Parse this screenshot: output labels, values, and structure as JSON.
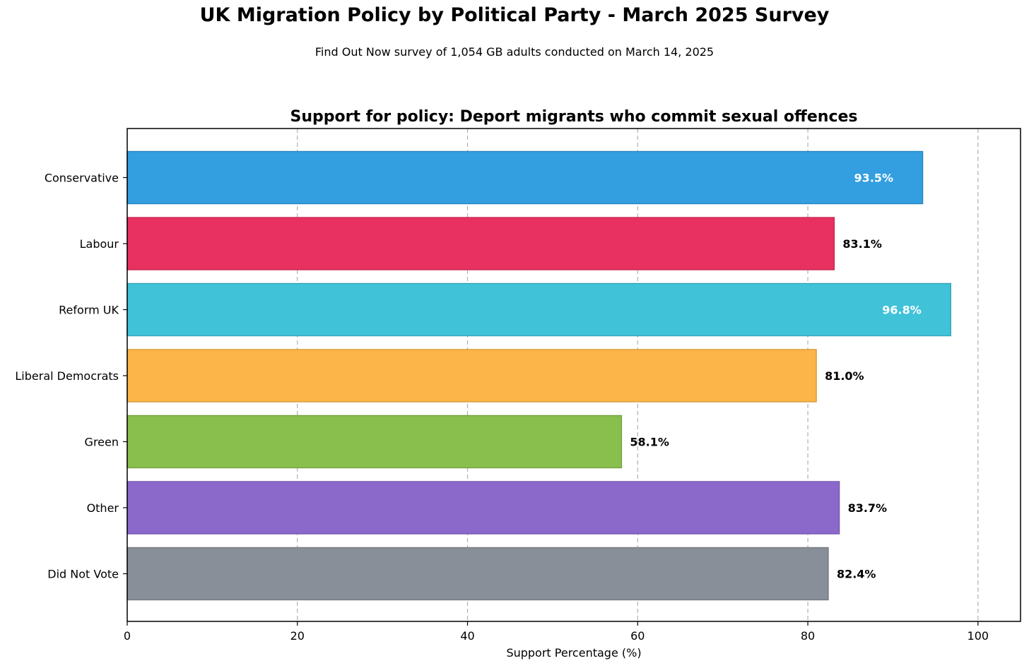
{
  "figure": {
    "title": "UK Migration Policy by Political Party - March 2025 Survey",
    "subtitle": "Find Out Now survey of 1,054 GB adults conducted on March 14, 2025"
  },
  "chart_data": {
    "type": "bar",
    "orientation": "horizontal",
    "title": "Support for policy: Deport migrants who commit sexual offences",
    "xlabel": "Support Percentage (%)",
    "ylabel": "",
    "xlim": [
      0,
      105
    ],
    "xticks": [
      0,
      20,
      40,
      60,
      80,
      100
    ],
    "grid": "x-axis dashed",
    "categories": [
      "Conservative",
      "Labour",
      "Reform UK",
      "Liberal Democrats",
      "Green",
      "Other",
      "Did Not Vote"
    ],
    "values": [
      93.5,
      83.1,
      96.8,
      81.0,
      58.1,
      83.7,
      82.4
    ],
    "value_labels": [
      "93.5%",
      "83.1%",
      "96.8%",
      "81.0%",
      "58.1%",
      "83.7%",
      "82.4%"
    ],
    "colors": [
      "#339ee0",
      "#e83160",
      "#40c2d8",
      "#fbb548",
      "#88bf4d",
      "#8b69cb",
      "#898f98"
    ],
    "label_inside": [
      true,
      false,
      true,
      false,
      false,
      false,
      false
    ]
  }
}
